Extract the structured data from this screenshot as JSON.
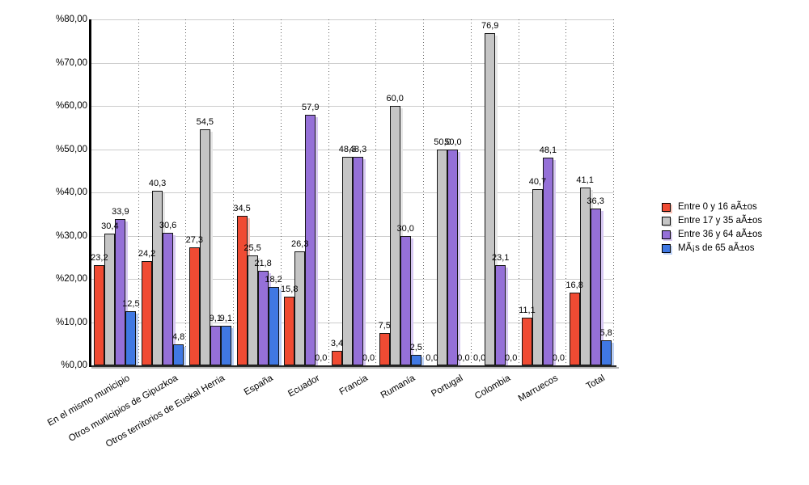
{
  "chart_data": {
    "type": "bar",
    "title": "",
    "categories": [
      "En el mismo municipio",
      "Otros municipios de Gipuzkoa",
      "Otros territorios de Euskal Herria",
      "España",
      "Ecuador",
      "Francia",
      "Rumanía",
      "Portugal",
      "Colombia",
      "Marruecos",
      "Total"
    ],
    "series": [
      {
        "name": "Entre 0 y 16 aÃ±os",
        "color": "#F04B33",
        "shadow": "#FAC3B8",
        "values": [
          23.2,
          24.2,
          27.3,
          34.5,
          15.8,
          3.4,
          7.5,
          0.0,
          0.0,
          11.1,
          16.8
        ]
      },
      {
        "name": "Entre 17 y 35 aÃ±os",
        "color": "#C5C5C5",
        "shadow": "#E6E6E6",
        "values": [
          30.4,
          40.3,
          54.5,
          25.5,
          26.3,
          48.3,
          60.0,
          50.0,
          76.9,
          40.7,
          41.1
        ]
      },
      {
        "name": "Entre 36 y 64 aÃ±os",
        "color": "#9570D8",
        "shadow": "#D7C8F2",
        "values": [
          33.9,
          30.6,
          9.1,
          21.8,
          57.9,
          48.3,
          30.0,
          50.0,
          23.1,
          48.1,
          36.3
        ]
      },
      {
        "name": "MÃ¡s de 65 aÃ±os",
        "color": "#4078E3",
        "shadow": "#BDD1F6",
        "values": [
          12.5,
          4.8,
          9.1,
          18.2,
          0.0,
          0.0,
          2.5,
          0.0,
          0.0,
          0.0,
          5.8
        ]
      }
    ],
    "y_axis": {
      "min": 0,
      "max": 80,
      "step": 10,
      "tick_labels": [
        "%0,00",
        "%10,00",
        "%20,00",
        "%30,00",
        "%40,00",
        "%50,00",
        "%60,00",
        "%70,00",
        "%80,00"
      ]
    },
    "value_labels": true,
    "decimal_separator": ",",
    "grid": true,
    "legend_position": "right",
    "xlabel": "",
    "ylabel": ""
  },
  "style": {
    "background": "#ffffff",
    "grid_color": "#cccccc",
    "separator_color": "#666666",
    "axis_color": "#000000",
    "text_color": "#000000"
  }
}
